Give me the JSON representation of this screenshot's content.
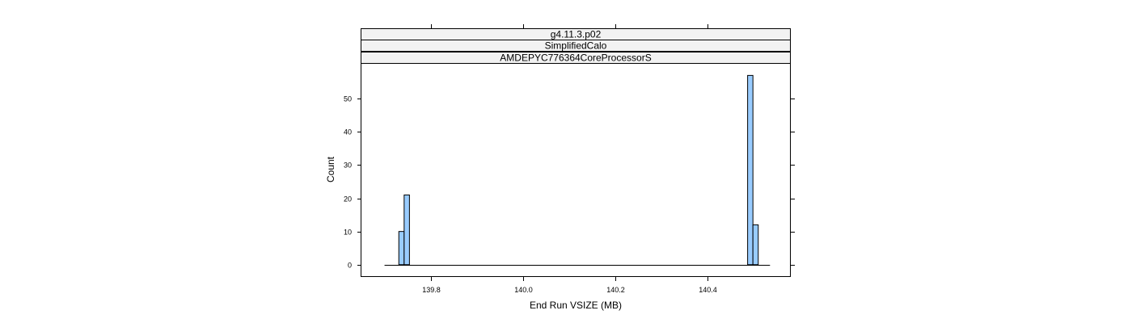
{
  "chart_data": {
    "type": "bar",
    "strips": [
      "g4.11.3.p02",
      "SimplifiedCalo",
      "AMDEPYC776364CoreProcessorS"
    ],
    "xlabel": "End Run VSIZE (MB)",
    "ylabel": "Count",
    "xlim": [
      139.65,
      140.58
    ],
    "ylim": [
      -3.7,
      60.5
    ],
    "x_ticks": [
      139.8,
      140.0,
      140.2,
      140.4
    ],
    "x_tick_labels": [
      "139.8",
      "140.0",
      "140.2",
      "140.4"
    ],
    "y_ticks": [
      0,
      10,
      20,
      30,
      40,
      50
    ],
    "y_tick_labels": [
      "0",
      "10",
      "20",
      "30",
      "40",
      "50"
    ],
    "baseline": [
      139.7,
      140.535
    ],
    "bin_width": 0.0115,
    "bars": [
      {
        "x0": 139.731,
        "count": 10
      },
      {
        "x0": 139.7425,
        "count": 21
      },
      {
        "x0": 140.4865,
        "count": 57
      },
      {
        "x0": 140.498,
        "count": 12
      }
    ],
    "colors": {
      "bar_fill": "#99CCFF",
      "bar_stroke": "#000000",
      "strip_bg": "#F2F2F2"
    }
  }
}
